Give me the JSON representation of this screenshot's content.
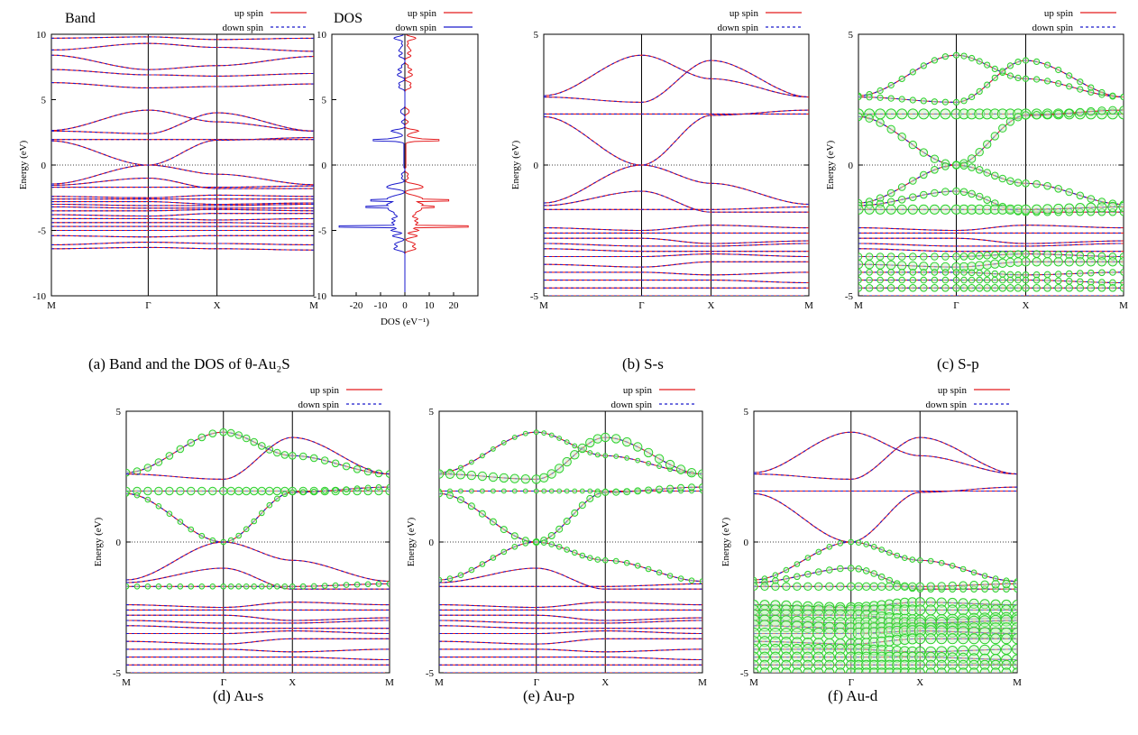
{
  "legend": {
    "up": "up spin",
    "down": "down spin"
  },
  "colors": {
    "up": "#e41a1c",
    "down": "#1a1acc",
    "weight": "#2bd12b",
    "weight_fill": "#c9f2c4"
  },
  "band_axis": {
    "ylabel": "Energy (eV)",
    "kpoints": [
      "M",
      "Γ",
      "X",
      "M"
    ],
    "kpos": [
      0,
      1,
      1.71,
      2.71
    ]
  },
  "captions": {
    "a": "(a) Band and the DOS of θ-Au₂S",
    "b": "(b) S-s",
    "c": "(c) S-p",
    "d": "(d) Au-s",
    "e": "(e) Au-p",
    "f": "(f) Au-d"
  },
  "chart_data": [
    {
      "id": "a-band",
      "type": "line",
      "title": "Band",
      "ylabel": "Energy (eV)",
      "x": [
        "M",
        "Γ",
        "X",
        "M"
      ],
      "ylim": [
        -10,
        10
      ],
      "yticks": [
        -10,
        -5,
        0,
        5,
        10
      ],
      "series": [
        {
          "name": "up spin"
        },
        {
          "name": "down spin"
        }
      ],
      "fermi_level": 0
    },
    {
      "id": "a-dos",
      "type": "line",
      "title": "DOS",
      "xlabel": "DOS (eV⁻¹)",
      "xlim": [
        -30,
        30
      ],
      "xticks": [
        -20,
        -10,
        0,
        10,
        20
      ],
      "ylim": [
        -10,
        10
      ],
      "yticks": [
        -10,
        -5,
        0,
        5,
        10
      ],
      "series": [
        {
          "name": "up spin"
        },
        {
          "name": "down spin"
        }
      ],
      "peaks": [
        {
          "energy": 1.9,
          "up": 14,
          "down": -13
        },
        {
          "energy": -2.7,
          "up": 18,
          "down": -14
        },
        {
          "energy": -3.2,
          "up": 12,
          "down": -16
        },
        {
          "energy": -4.7,
          "up": 26,
          "down": -27
        }
      ]
    },
    {
      "id": "b",
      "type": "line",
      "ylabel": "Energy (eV)",
      "x": [
        "M",
        "Γ",
        "X",
        "M"
      ],
      "ylim": [
        -5,
        5
      ],
      "yticks": [
        -5,
        0,
        5
      ],
      "projection": "S-s",
      "series": [
        {
          "name": "up spin"
        },
        {
          "name": "down spin"
        }
      ]
    },
    {
      "id": "c",
      "type": "line",
      "ylabel": "Energy (eV)",
      "x": [
        "M",
        "Γ",
        "X",
        "M"
      ],
      "ylim": [
        -5,
        5
      ],
      "yticks": [
        -5,
        0,
        5
      ],
      "projection": "S-p",
      "series": [
        {
          "name": "up spin"
        },
        {
          "name": "down spin"
        }
      ]
    },
    {
      "id": "d",
      "type": "line",
      "ylabel": "Energy (eV)",
      "x": [
        "M",
        "Γ",
        "X",
        "M"
      ],
      "ylim": [
        -5,
        5
      ],
      "yticks": [
        -5,
        0,
        5
      ],
      "projection": "Au-s",
      "series": [
        {
          "name": "up spin"
        },
        {
          "name": "down spin"
        }
      ]
    },
    {
      "id": "e",
      "type": "line",
      "ylabel": "Energy (eV)",
      "x": [
        "M",
        "Γ",
        "X",
        "M"
      ],
      "ylim": [
        -5,
        5
      ],
      "yticks": [
        -5,
        0,
        5
      ],
      "projection": "Au-p",
      "series": [
        {
          "name": "up spin"
        },
        {
          "name": "down spin"
        }
      ]
    },
    {
      "id": "f",
      "type": "line",
      "ylabel": "Energy (eV)",
      "x": [
        "M",
        "Γ",
        "X",
        "M"
      ],
      "ylim": [
        -5,
        5
      ],
      "yticks": [
        -5,
        0,
        5
      ],
      "projection": "Au-d",
      "series": [
        {
          "name": "up spin"
        },
        {
          "name": "down spin"
        }
      ]
    }
  ],
  "bands": [
    [
      9.7,
      9.8,
      9.6,
      9.7
    ],
    [
      8.8,
      9.3,
      9.0,
      8.7
    ],
    [
      8.4,
      7.3,
      7.6,
      8.3
    ],
    [
      7.3,
      6.9,
      6.8,
      7.0
    ],
    [
      6.3,
      5.9,
      6.0,
      6.2
    ],
    [
      2.65,
      4.2,
      3.3,
      2.6
    ],
    [
      2.6,
      2.4,
      4.0,
      2.6
    ],
    [
      1.95,
      1.95,
      1.95,
      1.95
    ],
    [
      1.85,
      0.0,
      1.9,
      2.1
    ],
    [
      -1.45,
      0.0,
      -0.7,
      -1.5
    ],
    [
      -1.55,
      -1.0,
      -1.8,
      -1.8
    ],
    [
      -1.7,
      -1.7,
      -1.7,
      -1.6
    ],
    [
      -2.4,
      -2.5,
      -2.3,
      -2.4
    ],
    [
      -2.6,
      -2.6,
      -2.6,
      -2.6
    ],
    [
      -2.8,
      -2.8,
      -3.0,
      -2.9
    ],
    [
      -3.0,
      -3.1,
      -3.1,
      -3.0
    ],
    [
      -3.2,
      -3.3,
      -3.3,
      -3.3
    ],
    [
      -3.5,
      -3.5,
      -3.4,
      -3.5
    ],
    [
      -3.8,
      -3.9,
      -3.7,
      -3.7
    ],
    [
      -4.1,
      -4.1,
      -4.2,
      -4.1
    ],
    [
      -4.4,
      -4.4,
      -4.4,
      -4.5
    ],
    [
      -4.7,
      -4.7,
      -4.7,
      -4.7
    ],
    [
      -5.0,
      -5.0,
      -5.0,
      -5.0
    ],
    [
      -5.4,
      -5.5,
      -5.4,
      -5.4
    ],
    [
      -6.1,
      -5.9,
      -6.0,
      -6.1
    ],
    [
      -6.4,
      -6.3,
      -6.4,
      -6.5
    ]
  ],
  "projection_weights": {
    "b": {},
    "c": {
      "5": 0.35,
      "6": 0.35,
      "7": 0.9,
      "8": 0.6,
      "9": 0.5,
      "10": 0.5,
      "11": 0.8,
      "17": 0.5,
      "18": 0.7,
      "19": 0.4,
      "20": 0.4,
      "21": 0.5
    },
    "d": {
      "5": 0.5,
      "7": 0.6,
      "8": 0.3,
      "11": 0.3
    },
    "e": {
      "5": 0.2,
      "6": 0.7,
      "7": 0.2,
      "8": 0.45,
      "9": 0.3
    },
    "f": {
      "9": 0.3,
      "10": 0.4,
      "11": 0.6,
      "12": 0.8,
      "13": 0.9,
      "14": 1.0,
      "15": 1.0,
      "16": 1.0,
      "17": 1.0,
      "18": 0.9,
      "19": 0.9,
      "20": 0.9,
      "21": 0.8,
      "22": 0.8
    }
  }
}
